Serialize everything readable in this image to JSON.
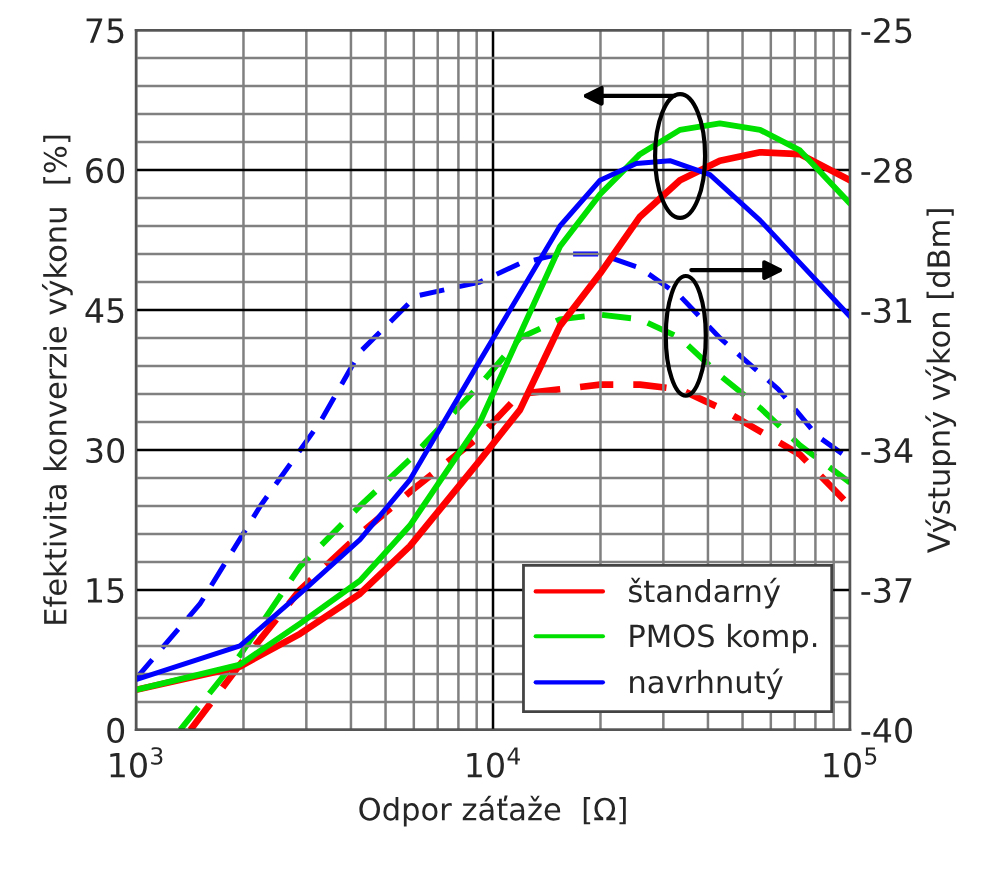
{
  "chart_data": {
    "type": "line",
    "xlabel": "Odpor záťaže  [Ω]",
    "ylabel": "Efektivita konverzie výkonu  [%]",
    "y2label": "Výstupný výkon [dBm]",
    "log": "x",
    "grid": true,
    "legend": "bottom right",
    "marker": "none",
    "xlim": [
      1000,
      100000
    ],
    "xticks": [
      {
        "value": 1000,
        "label": "10$^{3}$"
      },
      {
        "value": 10000,
        "label": "10$^{4}$"
      },
      {
        "value": 100000,
        "label": "10$^{5}$"
      }
    ],
    "ylim": [
      0,
      75
    ],
    "yticks": [
      0,
      15,
      30,
      45,
      60,
      75
    ],
    "y2lim": [
      -40,
      -25
    ],
    "y2ticks": [
      -40,
      -37,
      -34,
      -31,
      -28,
      -25
    ],
    "series": [
      {
        "name": "štandarný",
        "color": "#ff0000",
        "line_style": "solid",
        "x": [
          1000,
          1955,
          2880,
          4240,
          5850,
          9200,
          11900,
          15400,
          19950,
          25800,
          33400,
          43200,
          56000,
          72400,
          100000
        ],
        "values": [
          4.3,
          6.8,
          10.3,
          14.6,
          19.7,
          28.9,
          34.3,
          43.3,
          48.9,
          55.0,
          58.9,
          61.0,
          61.9,
          61.7,
          58.9
        ]
      },
      {
        "name": "PMOS komp.",
        "color": "#00e000",
        "line_style": "solid",
        "x": [
          1000,
          1955,
          2880,
          4240,
          5850,
          9200,
          11900,
          15400,
          19950,
          25800,
          33400,
          43200,
          56000,
          72400,
          100000
        ],
        "values": [
          4.3,
          7.0,
          11.4,
          16.0,
          21.9,
          33.0,
          42.4,
          51.8,
          57.4,
          61.7,
          64.3,
          65.0,
          64.3,
          62.1,
          56.4
        ]
      },
      {
        "name": "navrhnutý",
        "color": "#0000ff",
        "line_style": "solid",
        "x": [
          1000,
          1955,
          2880,
          4240,
          5850,
          9200,
          15400,
          19950,
          25200,
          31300,
          40500,
          56000,
          100000
        ],
        "values": [
          5.4,
          9.0,
          14.6,
          20.4,
          26.8,
          39.6,
          54.0,
          58.9,
          60.7,
          61.0,
          59.5,
          54.6,
          44.3
        ]
      },
      {
        "color": "#ff0000",
        "line_style": "dashed",
        "axis": "y2",
        "x": [
          1420,
          1955,
          2880,
          4240,
          5850,
          9200,
          11900,
          15400,
          19950,
          25800,
          33400,
          43200,
          56000,
          72400,
          100000
        ],
        "values": [
          -40.0,
          -38.6,
          -37.0,
          -35.8,
          -34.9,
          -33.7,
          -32.8,
          -32.7,
          -32.6,
          -32.6,
          -32.7,
          -33.1,
          -33.6,
          -34.1,
          -35.2
        ]
      },
      {
        "color": "#00e000",
        "line_style": "dashed",
        "axis": "y2",
        "x": [
          1330,
          1955,
          2880,
          4240,
          5850,
          9200,
          11900,
          15400,
          19950,
          25800,
          33400,
          43200,
          56000,
          72400,
          100000
        ],
        "values": [
          -40.0,
          -38.4,
          -36.5,
          -35.2,
          -34.2,
          -32.6,
          -31.6,
          -31.2,
          -31.1,
          -31.2,
          -31.6,
          -32.4,
          -33.1,
          -33.9,
          -34.7
        ]
      },
      {
        "color": "#0000ff",
        "line_style": "dashed",
        "axis": "y2",
        "x": [
          1000,
          1510,
          2230,
          3280,
          4240,
          6100,
          9200,
          11900,
          15400,
          19950,
          25800,
          33400,
          43200,
          63000,
          81000,
          100000
        ],
        "values": [
          -38.9,
          -37.3,
          -35.2,
          -33.4,
          -31.9,
          -30.7,
          -30.4,
          -30.0,
          -29.8,
          -29.8,
          -30.1,
          -30.7,
          -31.6,
          -32.7,
          -33.7,
          -34.2
        ]
      }
    ]
  }
}
